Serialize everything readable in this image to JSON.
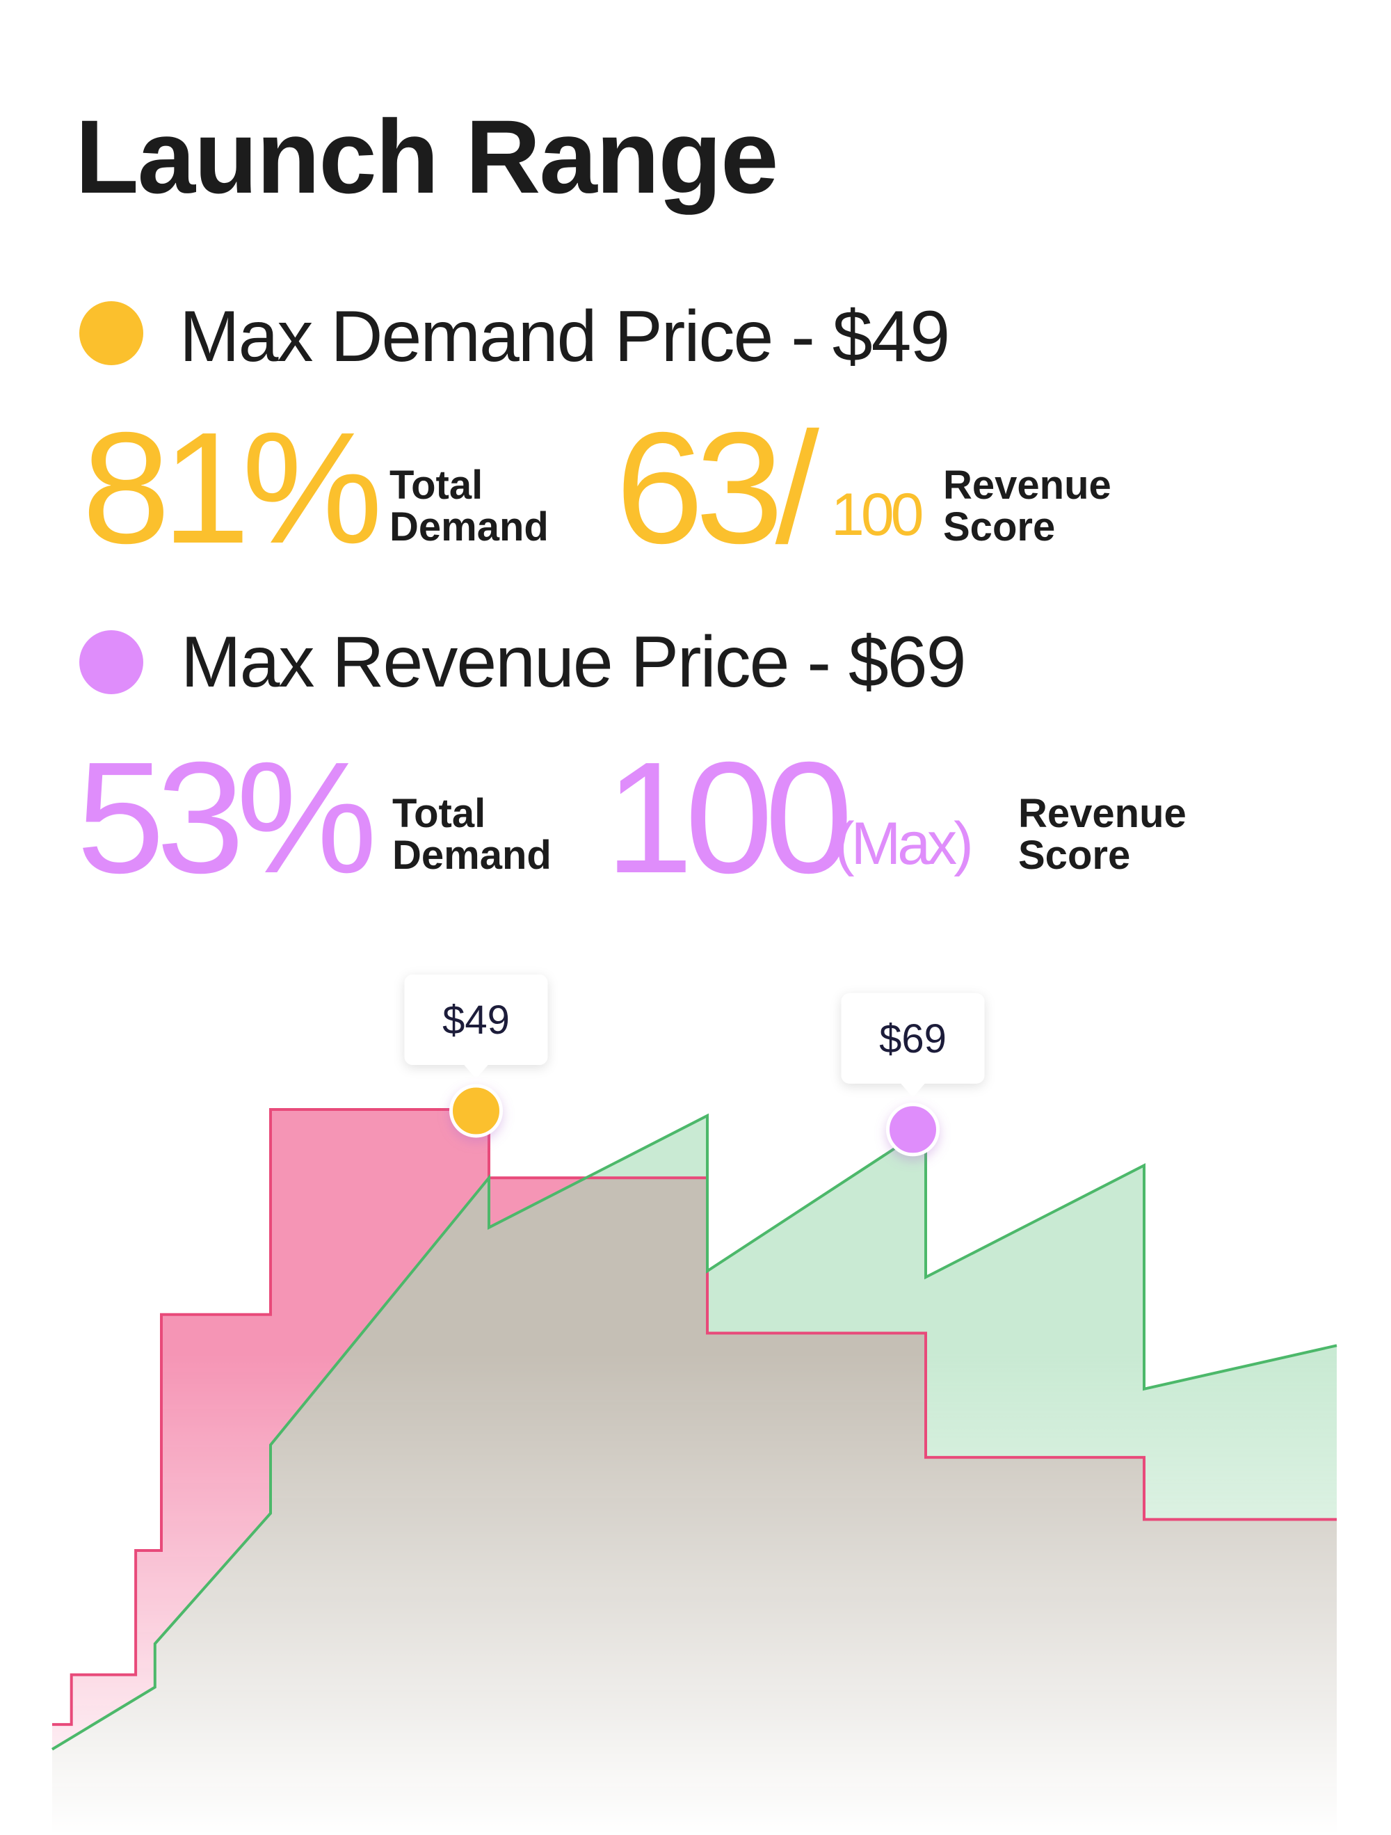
{
  "title": "Launch Range",
  "demand": {
    "label": "Max Demand Price - $49",
    "percent": "81%",
    "percent_caption": [
      "Total",
      "Demand"
    ],
    "score": "63/",
    "score_suffix": "100",
    "score_caption": [
      "Revenue",
      "Score"
    ],
    "color": "#fbc02d"
  },
  "revenue": {
    "label": "Max Revenue Price - $69",
    "percent": "53%",
    "percent_caption": [
      "Total",
      "Demand"
    ],
    "score": "100",
    "score_suffix": "(Max)",
    "score_caption": [
      "Revenue",
      "Score"
    ],
    "color": "#df8dfb"
  },
  "chart_data": {
    "type": "area",
    "title": "",
    "xlabel": "",
    "ylabel": "",
    "xlim": [
      0,
      100
    ],
    "ylim": [
      0,
      100
    ],
    "grid": false,
    "series": [
      {
        "color": "#e84a7a",
        "points": [
          [
            0,
            1
          ],
          [
            1.5,
            1
          ],
          [
            1.5,
            9
          ],
          [
            6.5,
            9
          ],
          [
            6.5,
            29
          ],
          [
            8.5,
            29
          ],
          [
            8.5,
            67
          ],
          [
            17,
            67
          ],
          [
            17,
            100
          ],
          [
            34,
            100
          ],
          [
            34,
            89
          ],
          [
            51,
            89
          ],
          [
            51,
            64
          ],
          [
            68,
            64
          ],
          [
            68,
            44
          ],
          [
            85,
            44
          ],
          [
            85,
            34
          ],
          [
            100,
            34
          ]
        ]
      },
      {
        "color": "#4cb86a",
        "points": [
          [
            0,
            -3
          ],
          [
            8,
            7
          ],
          [
            8,
            14
          ],
          [
            17,
            35
          ],
          [
            17,
            46
          ],
          [
            34,
            89
          ],
          [
            34,
            81
          ],
          [
            51,
            99
          ],
          [
            51,
            74
          ],
          [
            68,
            97
          ],
          [
            68,
            73
          ],
          [
            85,
            91
          ],
          [
            85,
            55
          ],
          [
            100,
            62
          ]
        ]
      }
    ],
    "markers": [
      {
        "x": 33,
        "y": 100,
        "label": "$49",
        "color": "#fbc02d"
      },
      {
        "x": 67,
        "y": 97,
        "label": "$69",
        "color": "#df8dfb"
      }
    ]
  }
}
